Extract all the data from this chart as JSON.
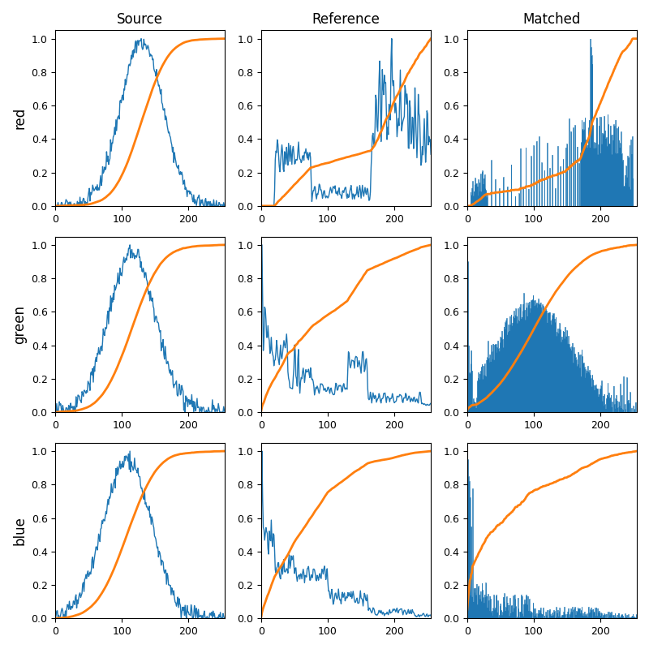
{
  "col_titles": [
    "Source",
    "Reference",
    "Matched"
  ],
  "row_labels": [
    "red",
    "green",
    "blue"
  ],
  "xlim": [
    0,
    255
  ],
  "ylim": [
    0,
    1.05
  ],
  "yticks": [
    0.0,
    0.2,
    0.4,
    0.6,
    0.8,
    1.0
  ],
  "xticks": [
    0,
    100,
    200
  ],
  "hist_color": "#1f77b4",
  "cdf_color": "#ff7f0e",
  "figsize": [
    8.0,
    8.0
  ],
  "dpi": 100
}
